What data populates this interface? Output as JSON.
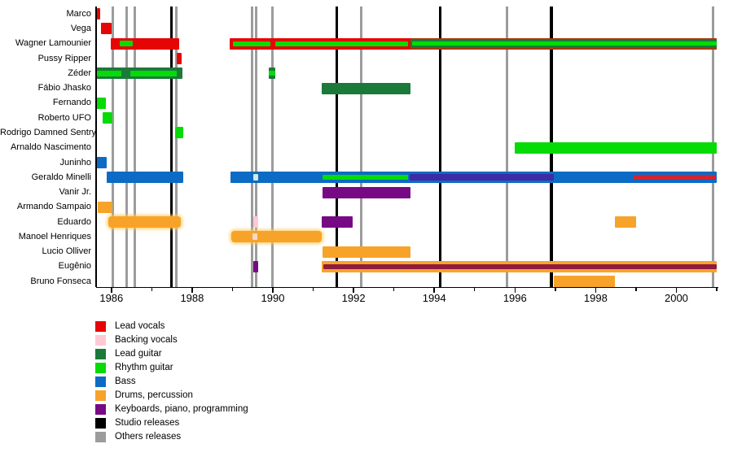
{
  "page": {
    "background": "#FFFFFF"
  },
  "chart_data": {
    "type": "timeline",
    "variant": "band-membership-gantt",
    "title": "",
    "x_axis": {
      "domain_start": 1985.62,
      "domain_end": 2001.02,
      "labels": [
        "1986",
        "1988",
        "1990",
        "1992",
        "1994",
        "1996",
        "1998",
        "2000"
      ],
      "labeled_years": [
        1986,
        1988,
        1990,
        1992,
        1994,
        1996,
        1998,
        2000
      ],
      "tick_years": [
        1986,
        1987,
        1988,
        1989,
        1990,
        1991,
        1992,
        1993,
        1994,
        1995,
        1996,
        1997,
        1998,
        1999,
        2000,
        2001
      ]
    },
    "colors": {
      "lead_vocals": "#E60505",
      "backing_vocals": "#FFC9D4",
      "lead_guitar": "#1B7A3A",
      "rhythm_guitar": "#05DB05",
      "bass": "#0C6BC4",
      "drums": "#F7A329",
      "keyboards": "#780984",
      "studio_releases": "#000000",
      "others_releases": "#9C9C9C",
      "blend_indigo": "#3F2BA3",
      "blend_maroon": "#8F1B3F",
      "blend_brown": "#A23A12",
      "stripe_red": "#D6232E",
      "pale_green": "#D9E8DA",
      "pale_peach": "#F6D8C8"
    },
    "legend": [
      {
        "label": "Lead vocals",
        "role": "lead_vocals"
      },
      {
        "label": "Backing vocals",
        "role": "backing_vocals"
      },
      {
        "label": "Lead guitar",
        "role": "lead_guitar"
      },
      {
        "label": "Rhythm guitar",
        "role": "rhythm_guitar"
      },
      {
        "label": "Bass",
        "role": "bass"
      },
      {
        "label": "Drums, percussion",
        "role": "drums"
      },
      {
        "label": "Keyboards, piano, programming",
        "role": "keyboards"
      },
      {
        "label": "Studio releases",
        "role": "studio_releases"
      },
      {
        "label": "Others releases",
        "role": "others_releases"
      }
    ],
    "release_lines": {
      "studio": [
        1987.49,
        1991.58,
        1994.15,
        1996.9
      ],
      "others": [
        1986.03,
        1986.38,
        1986.57,
        1987.6,
        1989.48,
        1989.59,
        1989.98,
        1992.18,
        1995.8,
        2000.9
      ]
    },
    "members": [
      {
        "name": "Marco",
        "bars": [
          {
            "start": 1985.64,
            "end": 1985.73,
            "role": "lead_vocals"
          }
        ]
      },
      {
        "name": "Vega",
        "bars": [
          {
            "start": 1985.74,
            "end": 1986.01,
            "role": "lead_vocals"
          }
        ]
      },
      {
        "name": "Wagner Lamounier",
        "bars": [
          {
            "start": 1985.99,
            "end": 1987.68,
            "role": "lead_vocals",
            "stripes": [
              {
                "start": 1986.21,
                "end": 1986.53,
                "role": "rhythm_guitar",
                "h": 7
              }
            ]
          },
          {
            "start": 1988.93,
            "end": 2001.0,
            "role": "lead_vocals",
            "stripes": [
              {
                "start": 1993.42,
                "end": 2001.0,
                "color": "blend_brown",
                "h": 14
              },
              {
                "start": 1993.42,
                "end": 2001.0,
                "role": "lead_guitar",
                "h": 9
              },
              {
                "start": 1989.01,
                "end": 1989.93,
                "role": "rhythm_guitar",
                "h": 6
              },
              {
                "start": 1990.06,
                "end": 1993.36,
                "role": "rhythm_guitar",
                "h": 6
              },
              {
                "start": 1993.46,
                "end": 2001.0,
                "role": "rhythm_guitar",
                "h": 5
              }
            ]
          }
        ]
      },
      {
        "name": "Pussy Ripper",
        "bars": [
          {
            "start": 1987.61,
            "end": 1987.74,
            "role": "lead_vocals"
          }
        ]
      },
      {
        "name": "Zéder",
        "bars": [
          {
            "start": 1985.62,
            "end": 1987.76,
            "role": "lead_guitar",
            "stripes": [
              {
                "start": 1985.64,
                "end": 1986.25,
                "role": "rhythm_guitar",
                "h": 7
              },
              {
                "start": 1986.47,
                "end": 1987.62,
                "role": "rhythm_guitar",
                "h": 7
              }
            ]
          },
          {
            "start": 1989.9,
            "end": 1990.06,
            "role": "lead_guitar",
            "stripes": [
              {
                "start": 1989.9,
                "end": 1990.06,
                "role": "rhythm_guitar",
                "h": 6
              }
            ]
          }
        ]
      },
      {
        "name": "Fábio Jhasko",
        "bars": [
          {
            "start": 1991.22,
            "end": 1993.42,
            "role": "lead_guitar"
          }
        ]
      },
      {
        "name": "Fernando",
        "bars": [
          {
            "start": 1985.62,
            "end": 1985.86,
            "role": "rhythm_guitar"
          }
        ]
      },
      {
        "name": "Roberto UFO",
        "bars": [
          {
            "start": 1985.78,
            "end": 1986.02,
            "role": "rhythm_guitar"
          }
        ]
      },
      {
        "name": "Rodrigo Damned Sentry",
        "bars": [
          {
            "start": 1987.57,
            "end": 1987.78,
            "role": "rhythm_guitar"
          }
        ]
      },
      {
        "name": "Arnaldo Nascimento",
        "bars": [
          {
            "start": 1995.99,
            "end": 2001.0,
            "role": "rhythm_guitar"
          }
        ]
      },
      {
        "name": "Juninho",
        "bars": [
          {
            "start": 1985.62,
            "end": 1985.88,
            "role": "bass"
          }
        ]
      },
      {
        "name": "Geraldo Minelli",
        "bars": [
          {
            "start": 1985.88,
            "end": 1987.78,
            "role": "bass"
          },
          {
            "start": 1988.95,
            "end": 2001.0,
            "role": "bass",
            "stripes": [
              {
                "start": 1989.52,
                "end": 1989.63,
                "color": "pale_green",
                "h": 8
              },
              {
                "start": 1991.23,
                "end": 1993.36,
                "role": "rhythm_guitar",
                "h": 6
              },
              {
                "start": 1993.4,
                "end": 1996.97,
                "color": "blend_indigo",
                "h": 8
              },
              {
                "start": 1998.95,
                "end": 2000.97,
                "color": "stripe_red",
                "h": 6
              }
            ]
          }
        ]
      },
      {
        "name": "Vanir Jr.",
        "bars": [
          {
            "start": 1991.24,
            "end": 1993.42,
            "role": "keyboards"
          }
        ]
      },
      {
        "name": "Armando Sampaio",
        "bars": [
          {
            "start": 1985.66,
            "end": 1986.02,
            "role": "drums"
          }
        ]
      },
      {
        "name": "Eduardo",
        "bars": [
          {
            "start": 1985.92,
            "end": 1987.71,
            "role": "drums",
            "halo": true
          },
          {
            "start": 1989.52,
            "end": 1989.64,
            "role": "backing_vocals"
          },
          {
            "start": 1991.22,
            "end": 1991.97,
            "role": "keyboards"
          },
          {
            "start": 1998.47,
            "end": 1999.01,
            "role": "drums"
          }
        ]
      },
      {
        "name": "Manoel Henriques",
        "bars": [
          {
            "start": 1988.97,
            "end": 1991.22,
            "role": "drums",
            "halo": true,
            "stripes": [
              {
                "start": 1989.5,
                "end": 1989.62,
                "color": "pale_peach",
                "h": 8
              }
            ]
          }
        ]
      },
      {
        "name": "Lucio Olliver",
        "bars": [
          {
            "start": 1991.24,
            "end": 1993.42,
            "role": "drums"
          }
        ]
      },
      {
        "name": "Eugênio",
        "bars": [
          {
            "start": 1989.52,
            "end": 1989.64,
            "role": "keyboards"
          },
          {
            "start": 1991.22,
            "end": 2001.0,
            "role": "drums",
            "stripes": [
              {
                "start": 1991.26,
                "end": 2001.0,
                "color": "blend_maroon",
                "h": 6
              }
            ]
          }
        ]
      },
      {
        "name": "Bruno Fonseca",
        "bars": [
          {
            "start": 1996.97,
            "end": 1998.47,
            "role": "drums"
          }
        ]
      }
    ]
  }
}
